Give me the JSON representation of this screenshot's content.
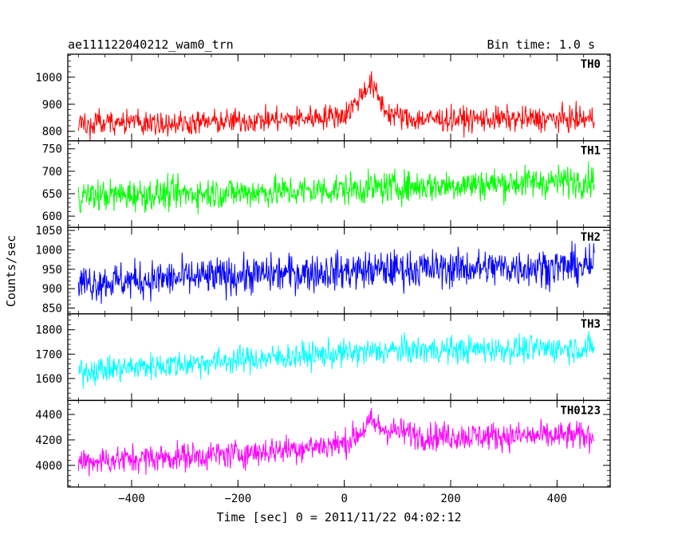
{
  "header": {
    "source": "ae111122040212_wam0_trn",
    "bin_time": "Bin time: 1.0 s"
  },
  "chart_data": {
    "type": "line",
    "xlabel": "Time [sec] 0 = 2011/11/22 04:02:12",
    "ylabel": "Counts/sec",
    "xlim": [
      -520,
      500
    ],
    "x_ticks": [
      -400,
      -200,
      0,
      200,
      400
    ],
    "x_range": [
      -500,
      470
    ],
    "grid": false,
    "panels": [
      {
        "name": "TH0",
        "color": "#ff0000",
        "ylim": [
          765,
          1085
        ],
        "y_ticks": [
          800,
          900,
          1000
        ],
        "baseline": [
          [
            -500,
            830
          ],
          [
            -300,
            830
          ],
          [
            -100,
            845
          ],
          [
            0,
            860
          ],
          [
            20,
            900
          ],
          [
            40,
            960
          ],
          [
            50,
            975
          ],
          [
            60,
            940
          ],
          [
            80,
            870
          ],
          [
            120,
            845
          ],
          [
            470,
            845
          ]
        ],
        "spread": 45
      },
      {
        "name": "TH1",
        "color": "#00ff00",
        "ylim": [
          575,
          768
        ],
        "y_ticks": [
          600,
          650,
          700,
          750
        ],
        "baseline": [
          [
            -500,
            645
          ],
          [
            -100,
            655
          ],
          [
            100,
            665
          ],
          [
            470,
            680
          ]
        ],
        "spread": 35
      },
      {
        "name": "TH2",
        "color": "#0000ff",
        "ylim": [
          835,
          1058
        ],
        "y_ticks": [
          850,
          900,
          950,
          1000,
          1050
        ],
        "baseline": [
          [
            -500,
            915
          ],
          [
            -100,
            940
          ],
          [
            100,
            950
          ],
          [
            470,
            958
          ]
        ],
        "spread": 48
      },
      {
        "name": "TH3",
        "color": "#00ffff",
        "ylim": [
          1510,
          1865
        ],
        "y_ticks": [
          1600,
          1700,
          1800
        ],
        "baseline": [
          [
            -500,
            1630
          ],
          [
            -100,
            1690
          ],
          [
            100,
            1715
          ],
          [
            470,
            1725
          ]
        ],
        "spread": 55
      },
      {
        "name": "TH0123",
        "color": "#ff00ff",
        "ylim": [
          3830,
          4510
        ],
        "y_ticks": [
          4000,
          4200,
          4400
        ],
        "baseline": [
          [
            -500,
            4030
          ],
          [
            -200,
            4090
          ],
          [
            0,
            4170
          ],
          [
            30,
            4260
          ],
          [
            50,
            4340
          ],
          [
            70,
            4290
          ],
          [
            150,
            4230
          ],
          [
            470,
            4230
          ]
        ],
        "spread": 110
      }
    ]
  }
}
